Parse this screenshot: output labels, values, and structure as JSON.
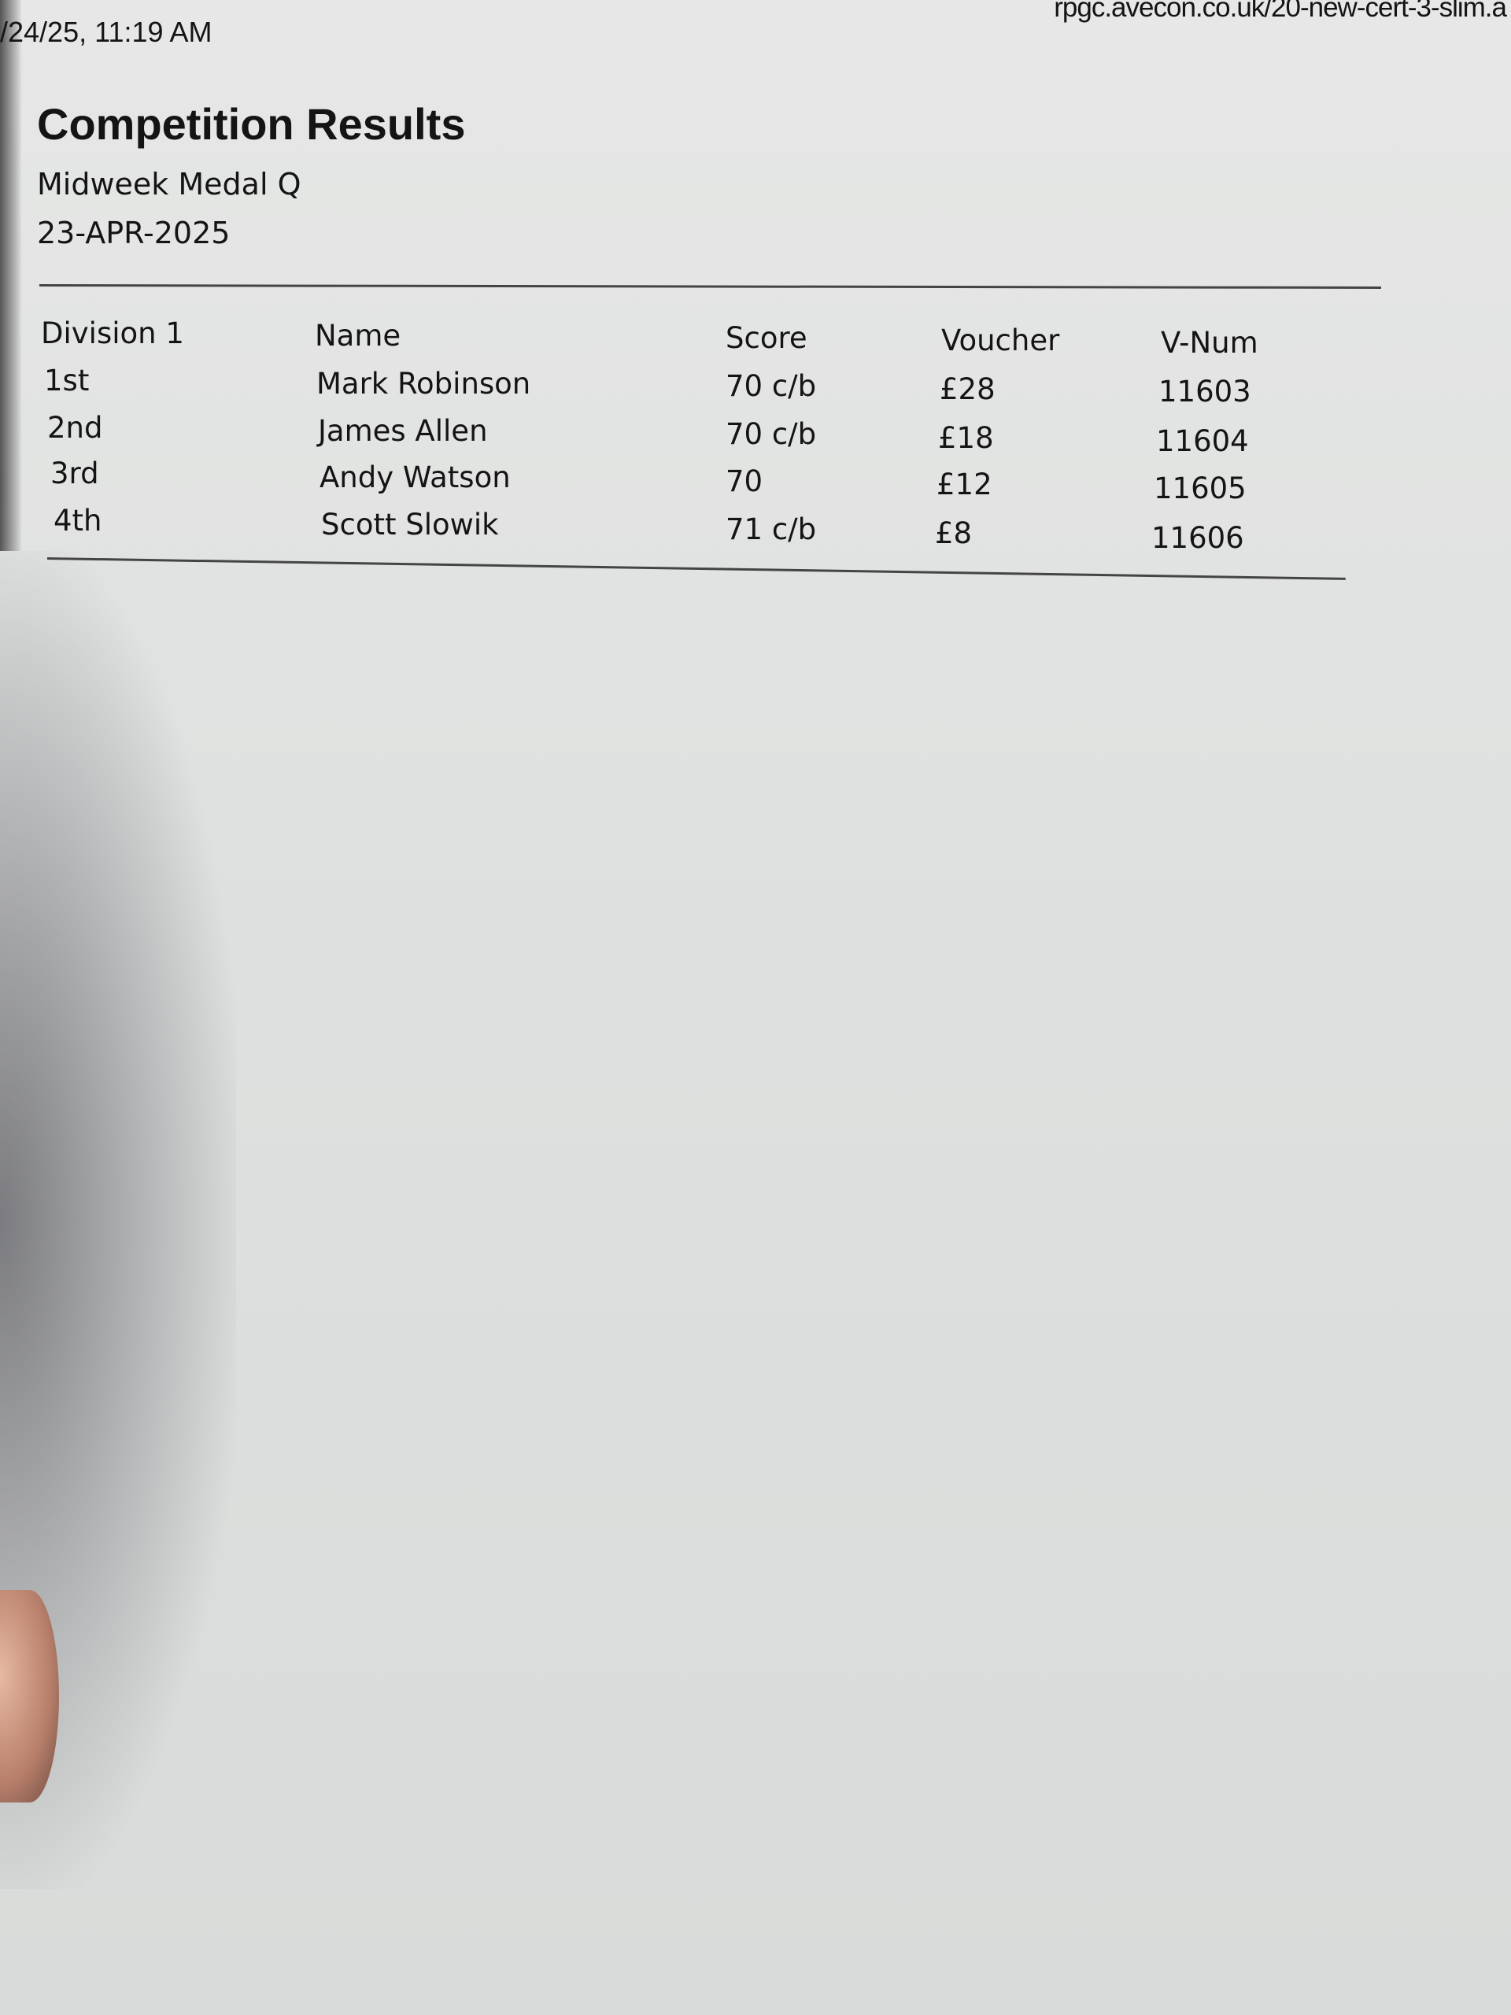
{
  "print_header": {
    "timestamp": "/24/25, 11:19 AM",
    "url": "rpgc.avecon.co.uk/20-new-cert-3-slim.a"
  },
  "document": {
    "title": "Competition Results",
    "competition": "Midweek Medal Q",
    "date": "23-APR-2025"
  },
  "table": {
    "headers": [
      "Division 1",
      "Name",
      "Score",
      "Voucher",
      "V-Num"
    ],
    "rows": [
      [
        "1st",
        "Mark Robinson",
        "70 c/b",
        "£28",
        "11603"
      ],
      [
        "2nd",
        "James Allen",
        "70 c/b",
        "£18",
        "11604"
      ],
      [
        "3rd",
        "Andy Watson",
        "70",
        "£12",
        "11605"
      ],
      [
        "4th",
        "Scott Slowik",
        "71 c/b",
        "£8",
        "11606"
      ]
    ]
  }
}
